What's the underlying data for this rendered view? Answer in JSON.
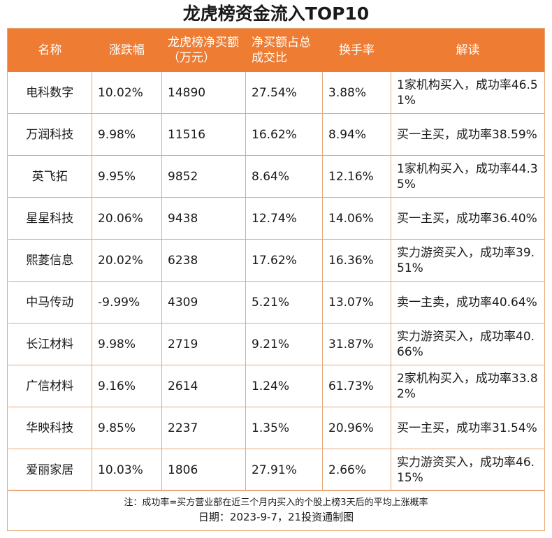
{
  "title": "龙虎榜资金流入TOP10",
  "chart_data": {
    "type": "table",
    "title": "龙虎榜资金流入TOP10",
    "columns": [
      "名称",
      "涨跌幅",
      "龙虎榜净买额（万元）",
      "净买额占总成交比",
      "换手率",
      "解读"
    ],
    "rows": [
      [
        "电科数字",
        "10.02%",
        "14890",
        "27.54%",
        "3.88%",
        "1家机构买入，成功率46.51%"
      ],
      [
        "万润科技",
        "9.98%",
        "11516",
        "16.62%",
        "8.94%",
        "买一主买，成功率38.59%"
      ],
      [
        "英飞拓",
        "9.95%",
        "9852",
        "8.64%",
        "12.16%",
        "1家机构买入，成功率44.35%"
      ],
      [
        "星星科技",
        "20.06%",
        "9438",
        "12.74%",
        "14.06%",
        "买一主买，成功率36.40%"
      ],
      [
        "熙菱信息",
        "20.02%",
        "6238",
        "17.62%",
        "16.36%",
        "实力游资买入，成功率39.51%"
      ],
      [
        "中马传动",
        "-9.99%",
        "4309",
        "5.21%",
        "13.07%",
        "卖一主卖，成功率40.64%"
      ],
      [
        "长江材料",
        "9.98%",
        "2719",
        "9.21%",
        "31.87%",
        "实力游资买入，成功率40.66%"
      ],
      [
        "广信材料",
        "9.16%",
        "2614",
        "1.24%",
        "61.73%",
        "2家机构买入，成功率33.82%"
      ],
      [
        "华映科技",
        "9.85%",
        "2237",
        "1.35%",
        "20.96%",
        "买一主买，成功率31.54%"
      ],
      [
        "爱丽家居",
        "10.03%",
        "1806",
        "27.91%",
        "2.66%",
        "实力游资买入，成功率46.15%"
      ]
    ],
    "note": "注：成功率=买方营业部在近三个月内买入的个股上榜3天后的平均上涨概率",
    "source": "日期：2023-9-7，21投资通制图"
  },
  "colors": {
    "header_bg": "#ee7c33",
    "header_text": "#ffffff",
    "border": "#e8a77a"
  }
}
